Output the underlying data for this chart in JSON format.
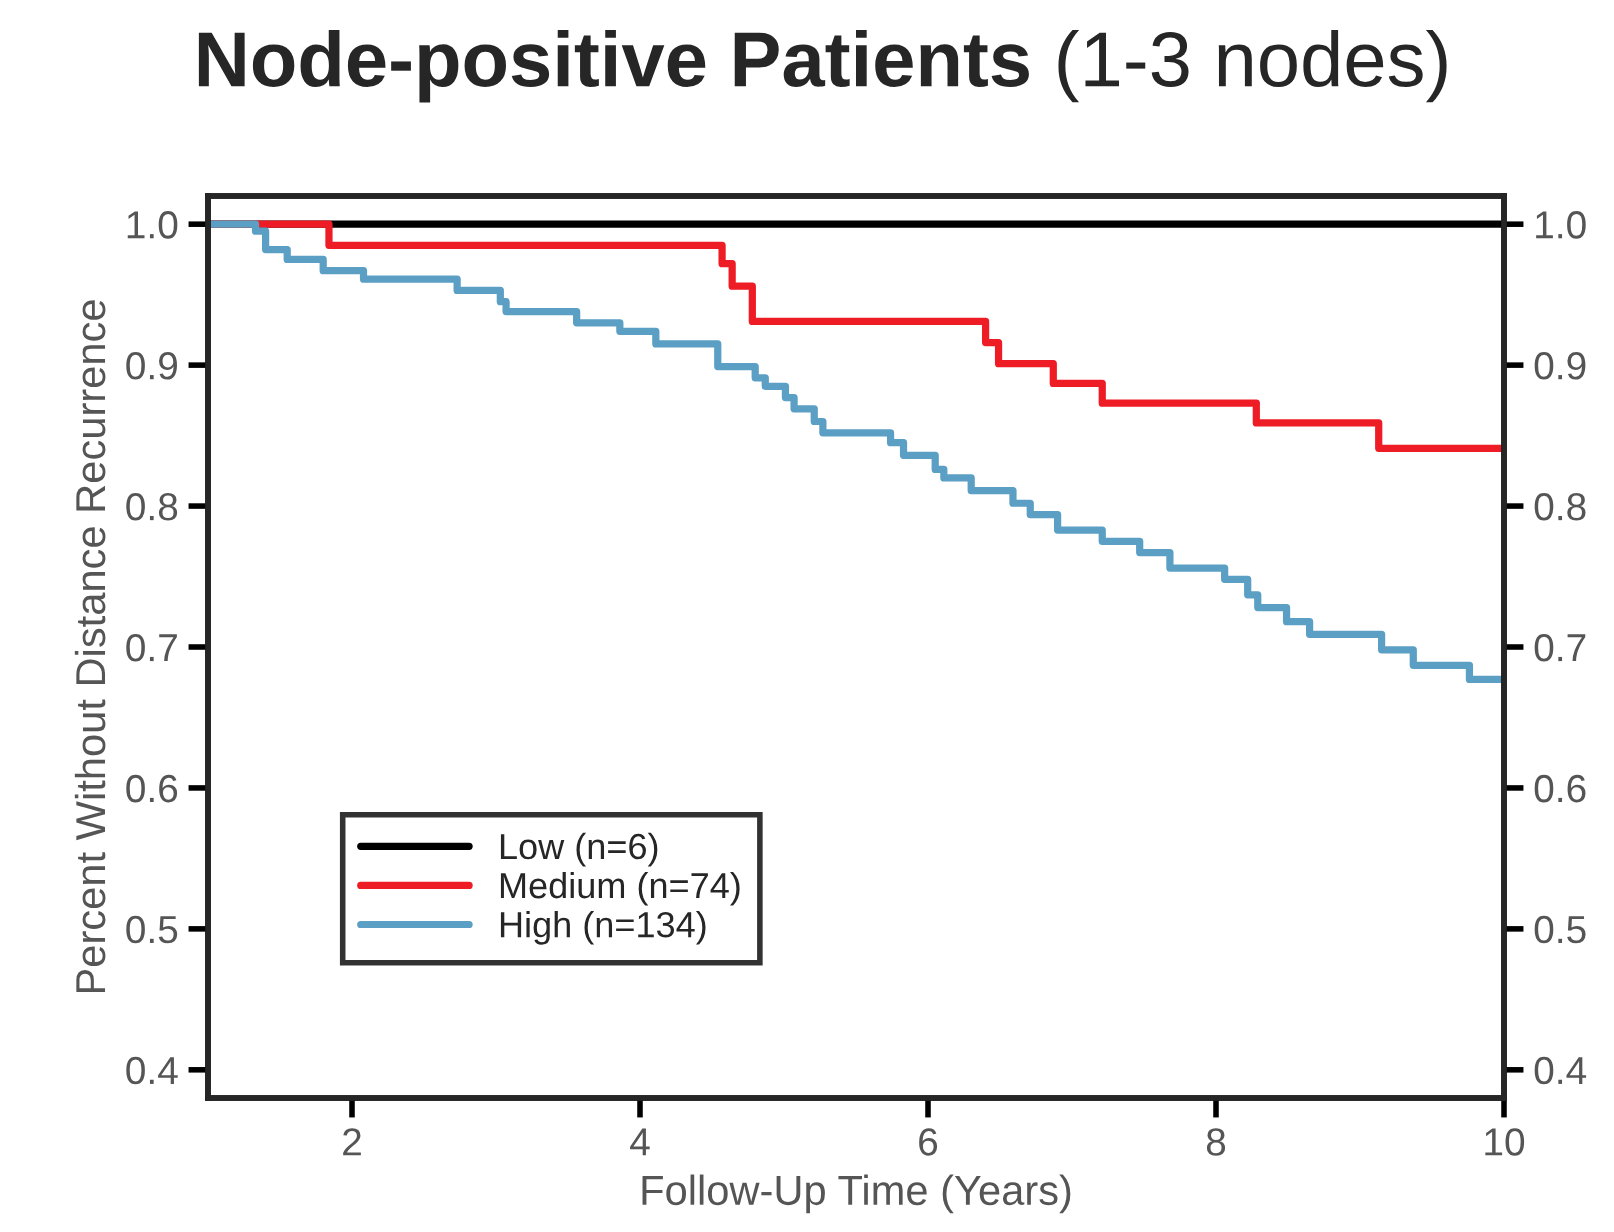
{
  "chart_data": {
    "type": "step",
    "title": "Node-positive Patients",
    "subtitle": "(1-3 nodes)",
    "xlabel": "Follow-Up Time (Years)",
    "ylabel": "Percent Without Distance Recurrence",
    "xlim": [
      1,
      10
    ],
    "xticks": [
      2,
      4,
      6,
      8,
      10
    ],
    "ylim": [
      0.38,
      1.02
    ],
    "yticks": [
      0.4,
      0.5,
      0.6,
      0.7,
      0.8,
      0.9,
      {
        "value": 1,
        "label": "1.0"
      }
    ],
    "y2lim": [
      0.38,
      1.02
    ],
    "y2ticks": [
      0.4,
      0.5,
      0.6,
      0.7,
      0.8,
      0.9,
      {
        "value": 1,
        "label": "1.0"
      }
    ],
    "grid": false,
    "legend": "bottom left",
    "marker": "none",
    "line_style": "solid",
    "series": [
      {
        "name": "Low (n=6)",
        "color": "#000000",
        "x": [
          1.0,
          10.0
        ],
        "values": [
          1.0,
          1.0
        ]
      },
      {
        "name": "Medium (n=74)",
        "color": "#ee1c25",
        "x": [
          1.0,
          1.84,
          4.57,
          4.64,
          4.78,
          4.95,
          6.4,
          6.49,
          6.87,
          7.21,
          8.28,
          9.13,
          10.0
        ],
        "values": [
          1.0,
          0.985,
          0.972,
          0.956,
          0.931,
          0.931,
          0.916,
          0.901,
          0.887,
          0.873,
          0.859,
          0.841,
          0.841
        ]
      },
      {
        "name": "High (n=134)",
        "color": "#5b9fc4",
        "x": [
          1.0,
          1.33,
          1.4,
          1.55,
          1.8,
          2.08,
          2.73,
          3.03,
          3.07,
          3.56,
          3.86,
          4.11,
          4.54,
          4.8,
          4.87,
          5.01,
          5.07,
          5.21,
          5.27,
          5.74,
          5.83,
          6.05,
          6.11,
          6.3,
          6.59,
          6.71,
          6.9,
          7.21,
          7.47,
          7.68,
          8.06,
          8.22,
          8.29,
          8.49,
          8.65,
          9.15,
          9.37,
          9.76,
          10.0
        ],
        "values": [
          1.0,
          0.995,
          0.982,
          0.975,
          0.967,
          0.961,
          0.953,
          0.945,
          0.938,
          0.93,
          0.924,
          0.915,
          0.899,
          0.891,
          0.885,
          0.877,
          0.869,
          0.86,
          0.852,
          0.845,
          0.836,
          0.826,
          0.82,
          0.811,
          0.802,
          0.794,
          0.783,
          0.775,
          0.767,
          0.756,
          0.748,
          0.737,
          0.728,
          0.718,
          0.709,
          0.698,
          0.687,
          0.677,
          0.677
        ]
      }
    ]
  }
}
